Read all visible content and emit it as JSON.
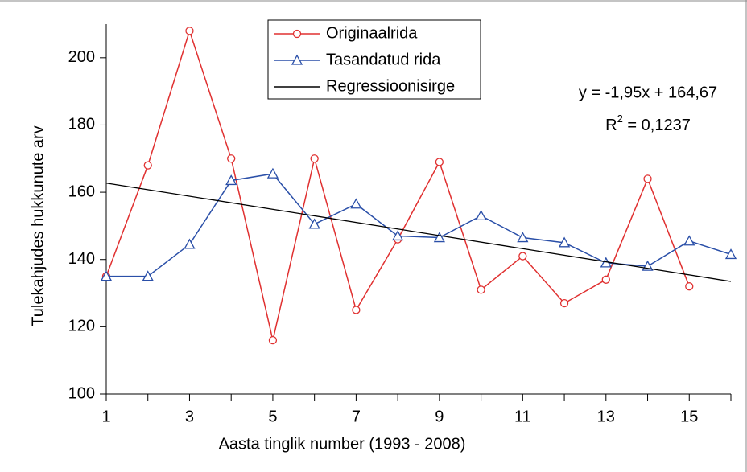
{
  "chart_data": {
    "type": "line",
    "x_label": "Aasta tinglik number (1993 - 2008)",
    "y_label": "Tulekahjudes hukkunute arv",
    "x": [
      1,
      2,
      3,
      4,
      5,
      6,
      7,
      8,
      9,
      10,
      11,
      12,
      13,
      14,
      15,
      16
    ],
    "series": [
      {
        "name": "Originaalrida",
        "color": "#e03030",
        "marker": "circle",
        "values": [
          135,
          168,
          208,
          170,
          116,
          170,
          125,
          146,
          169,
          131,
          141,
          127,
          134,
          164,
          132,
          null
        ]
      },
      {
        "name": "Tasandatud rida",
        "color": "#2a4fa8",
        "marker": "triangle",
        "values": [
          135,
          135,
          144.5,
          163.5,
          165.5,
          150.5,
          156.5,
          147,
          146.5,
          153,
          146.5,
          145,
          139,
          138,
          145.5,
          141.5
        ]
      },
      {
        "name": "Regressioonisirge",
        "color": "#000000",
        "marker": "none",
        "x": [
          1,
          16
        ],
        "values": [
          162.72,
          133.47
        ]
      }
    ],
    "xlim": [
      1,
      16
    ],
    "xticks": [
      1,
      3,
      5,
      7,
      9,
      11,
      13,
      15
    ],
    "xminorticks": [
      2,
      4,
      6,
      8,
      10,
      12,
      14,
      16
    ],
    "ylim": [
      100,
      210
    ],
    "yticks": [
      100,
      120,
      140,
      160,
      180,
      200
    ],
    "annotation": {
      "equation": "y = -1,95x + 164,67",
      "r2_symbol": "R",
      "r2_power": "2",
      "r2_value": " = 0,1237"
    }
  }
}
